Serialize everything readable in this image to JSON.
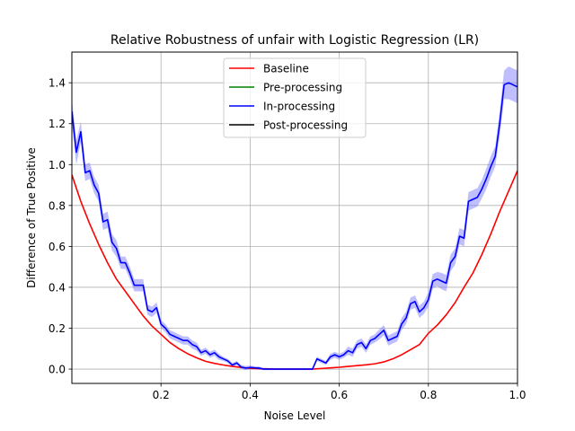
{
  "chart_data": {
    "type": "line",
    "title": "Relative Robustness of unfair with Logistic Regression (LR)",
    "xlabel": "Noise Level",
    "ylabel": "Difference of True Positive",
    "xlim": [
      0.0,
      1.0
    ],
    "ylim": [
      -0.07,
      1.55
    ],
    "xticks": [
      0.2,
      0.4,
      0.6,
      0.8,
      1.0
    ],
    "xtick_labels": [
      "0.2",
      "0.4",
      "0.6",
      "0.8",
      "1.0"
    ],
    "yticks": [
      0.0,
      0.2,
      0.4,
      0.6,
      0.8,
      1.0,
      1.2,
      1.4
    ],
    "ytick_labels": [
      "0.0",
      "0.2",
      "0.4",
      "0.6",
      "0.8",
      "1.0",
      "1.2",
      "1.4"
    ],
    "grid": true,
    "legend_position": "top-center",
    "series": [
      {
        "name": "Baseline",
        "color": "#ff0000",
        "x": [
          0.0,
          0.02,
          0.04,
          0.06,
          0.08,
          0.1,
          0.12,
          0.14,
          0.16,
          0.18,
          0.2,
          0.22,
          0.24,
          0.26,
          0.28,
          0.3,
          0.32,
          0.34,
          0.36,
          0.38,
          0.4,
          0.42,
          0.44,
          0.46,
          0.48,
          0.5,
          0.52,
          0.54,
          0.56,
          0.58,
          0.6,
          0.62,
          0.64,
          0.66,
          0.68,
          0.7,
          0.72,
          0.74,
          0.76,
          0.78,
          0.8,
          0.82,
          0.84,
          0.86,
          0.88,
          0.9,
          0.92,
          0.94,
          0.96,
          0.98,
          1.0
        ],
        "values": [
          0.95,
          0.82,
          0.71,
          0.61,
          0.52,
          0.44,
          0.38,
          0.32,
          0.26,
          0.21,
          0.17,
          0.13,
          0.1,
          0.075,
          0.055,
          0.038,
          0.028,
          0.02,
          0.013,
          0.008,
          0.004,
          0.002,
          0.001,
          0.0,
          0.0,
          0.0,
          0.0,
          0.0,
          0.003,
          0.006,
          0.009,
          0.013,
          0.017,
          0.021,
          0.026,
          0.035,
          0.05,
          0.07,
          0.095,
          0.12,
          0.175,
          0.215,
          0.265,
          0.325,
          0.4,
          0.47,
          0.56,
          0.66,
          0.77,
          0.87,
          0.97
        ]
      },
      {
        "name": "Pre-processing",
        "color": "#008000",
        "x": [],
        "values": []
      },
      {
        "name": "In-processing",
        "color": "#0000ff",
        "band_color": "#8080ff",
        "x": [
          0.0,
          0.01,
          0.02,
          0.03,
          0.04,
          0.05,
          0.06,
          0.07,
          0.08,
          0.09,
          0.1,
          0.11,
          0.12,
          0.13,
          0.14,
          0.15,
          0.16,
          0.17,
          0.18,
          0.19,
          0.2,
          0.21,
          0.22,
          0.23,
          0.24,
          0.25,
          0.26,
          0.27,
          0.28,
          0.29,
          0.3,
          0.31,
          0.32,
          0.33,
          0.34,
          0.35,
          0.36,
          0.37,
          0.38,
          0.39,
          0.4,
          0.41,
          0.42,
          0.43,
          0.44,
          0.45,
          0.46,
          0.47,
          0.48,
          0.49,
          0.5,
          0.51,
          0.52,
          0.53,
          0.54,
          0.55,
          0.56,
          0.57,
          0.58,
          0.59,
          0.6,
          0.61,
          0.62,
          0.63,
          0.64,
          0.65,
          0.66,
          0.67,
          0.68,
          0.69,
          0.7,
          0.71,
          0.72,
          0.73,
          0.74,
          0.75,
          0.76,
          0.77,
          0.78,
          0.79,
          0.8,
          0.81,
          0.82,
          0.83,
          0.84,
          0.85,
          0.86,
          0.87,
          0.88,
          0.89,
          0.9,
          0.91,
          0.92,
          0.93,
          0.94,
          0.95,
          0.96,
          0.97,
          0.98,
          0.99,
          1.0
        ],
        "values": [
          1.26,
          1.06,
          1.16,
          0.96,
          0.97,
          0.9,
          0.86,
          0.72,
          0.73,
          0.62,
          0.59,
          0.52,
          0.52,
          0.47,
          0.41,
          0.41,
          0.41,
          0.29,
          0.28,
          0.3,
          0.22,
          0.2,
          0.17,
          0.16,
          0.15,
          0.14,
          0.14,
          0.12,
          0.11,
          0.08,
          0.09,
          0.07,
          0.08,
          0.06,
          0.05,
          0.04,
          0.02,
          0.03,
          0.01,
          0.005,
          0.008,
          0.006,
          0.005,
          0.0,
          0.0,
          0.0,
          0.0,
          0.0,
          0.0,
          0.0,
          0.0,
          0.0,
          0.0,
          0.0,
          0.0,
          0.05,
          0.04,
          0.03,
          0.06,
          0.07,
          0.06,
          0.07,
          0.09,
          0.08,
          0.12,
          0.13,
          0.1,
          0.14,
          0.15,
          0.17,
          0.19,
          0.14,
          0.15,
          0.16,
          0.22,
          0.25,
          0.32,
          0.33,
          0.28,
          0.3,
          0.34,
          0.43,
          0.44,
          0.43,
          0.42,
          0.52,
          0.55,
          0.65,
          0.64,
          0.82,
          0.83,
          0.84,
          0.88,
          0.93,
          0.99,
          1.04,
          1.2,
          1.39,
          1.4,
          1.39,
          1.38
        ],
        "spread": [
          0.06,
          0.06,
          0.05,
          0.04,
          0.04,
          0.04,
          0.04,
          0.04,
          0.04,
          0.04,
          0.04,
          0.03,
          0.03,
          0.03,
          0.03,
          0.03,
          0.03,
          0.025,
          0.025,
          0.025,
          0.02,
          0.02,
          0.02,
          0.02,
          0.02,
          0.02,
          0.02,
          0.02,
          0.02,
          0.015,
          0.015,
          0.015,
          0.015,
          0.015,
          0.01,
          0.01,
          0.01,
          0.01,
          0.01,
          0.01,
          0.01,
          0.008,
          0.008,
          0.005,
          0.005,
          0.005,
          0.005,
          0.005,
          0.005,
          0.005,
          0.005,
          0.005,
          0.005,
          0.005,
          0.005,
          0.01,
          0.01,
          0.01,
          0.015,
          0.015,
          0.015,
          0.015,
          0.02,
          0.02,
          0.02,
          0.02,
          0.02,
          0.02,
          0.02,
          0.025,
          0.025,
          0.025,
          0.025,
          0.025,
          0.03,
          0.03,
          0.03,
          0.03,
          0.03,
          0.03,
          0.035,
          0.035,
          0.035,
          0.04,
          0.04,
          0.04,
          0.04,
          0.04,
          0.04,
          0.045,
          0.045,
          0.045,
          0.045,
          0.05,
          0.05,
          0.05,
          0.06,
          0.07,
          0.08,
          0.08,
          0.08
        ]
      },
      {
        "name": "Post-processing",
        "color": "#000000",
        "x": [],
        "values": []
      }
    ]
  }
}
